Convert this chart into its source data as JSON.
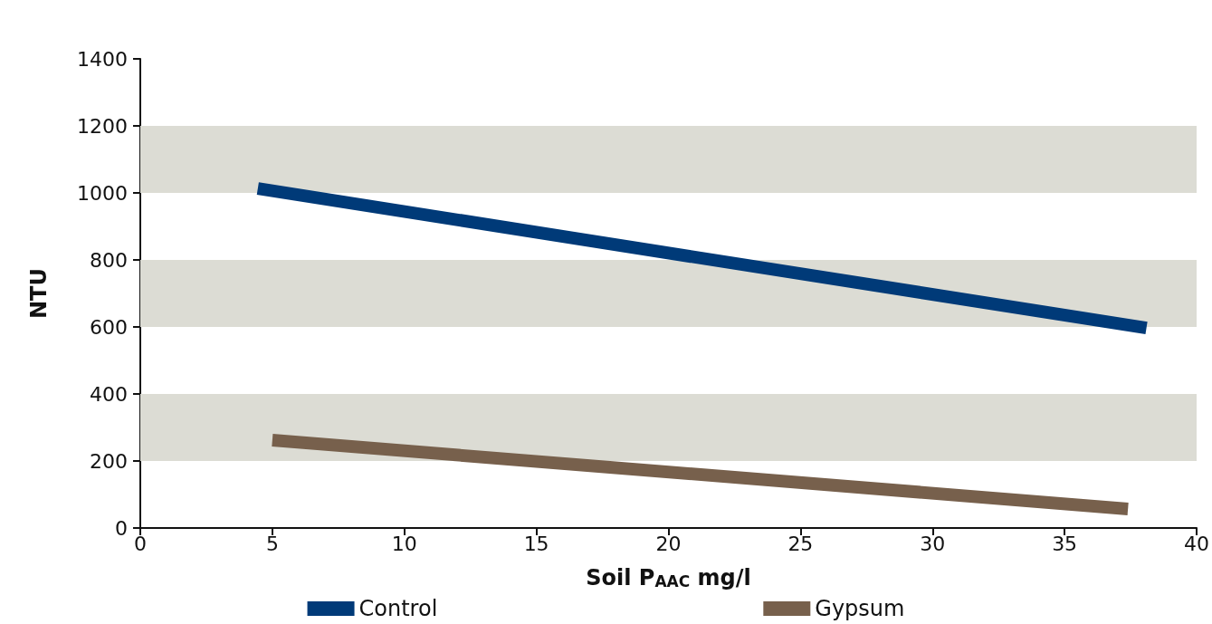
{
  "chart_data": {
    "type": "line",
    "xlabel": "Soil P$_{AAC}$ mg/l",
    "ylabel": "NTU",
    "xlim": [
      0,
      40
    ],
    "xticks": [
      0,
      5,
      10,
      15,
      20,
      25,
      30,
      35,
      40
    ],
    "ylim": [
      0,
      1400
    ],
    "yticks": [
      0,
      200,
      400,
      600,
      800,
      1000,
      1200,
      1400
    ],
    "bands": [
      {
        "axis": "y",
        "from": 200,
        "to": 400,
        "color": "#dcdcd4"
      },
      {
        "axis": "y",
        "from": 600,
        "to": 800,
        "color": "#dcdcd4"
      },
      {
        "axis": "y",
        "from": 1000,
        "to": 1200,
        "color": "#dcdcd4"
      }
    ],
    "legend": "bottom",
    "marker": "none",
    "line_style": "solid",
    "series": [
      {
        "name": "Control",
        "color": "#003a78",
        "x": [
          4.45,
          38.1
        ],
        "values": [
          1013,
          597
        ]
      },
      {
        "name": "Gypsum",
        "color": "#77604c",
        "x": [
          5,
          37.4
        ],
        "values": [
          262,
          57
        ]
      }
    ]
  }
}
